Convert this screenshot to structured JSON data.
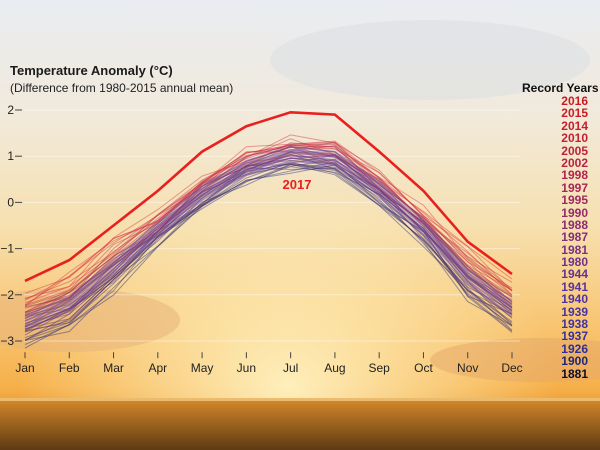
{
  "chart_data": {
    "type": "line",
    "title": "Temperature Anomaly (°C)",
    "subtitle": "(Difference from 1980-2015 annual mean)",
    "xlabel": "",
    "ylabel": "Temperature Anomaly (°C)",
    "categories": [
      "Jan",
      "Feb",
      "Mar",
      "Apr",
      "May",
      "Jun",
      "Jul",
      "Aug",
      "Sep",
      "Oct",
      "Nov",
      "Dec"
    ],
    "yticks": [
      2,
      1,
      0,
      -1,
      -2,
      -3
    ],
    "ytick_labels": [
      "2",
      "1",
      "0",
      "−1",
      "−2",
      "−3"
    ],
    "ylim": [
      -3.2,
      2.2
    ],
    "grid": true,
    "highlight": {
      "name": "2017",
      "color": "#e8201e",
      "values": [
        -1.7,
        -1.25,
        -0.5,
        0.25,
        1.1,
        1.65,
        1.95,
        1.9,
        1.1,
        0.25,
        -0.85,
        -1.55
      ]
    },
    "climatology": {
      "mean": [
        -2.6,
        -2.2,
        -1.4,
        -0.6,
        0.2,
        0.75,
        1.05,
        0.95,
        0.3,
        -0.55,
        -1.6,
        -2.3
      ],
      "color_old": "#1d2a7a",
      "color_new": "#e2303a",
      "line_count": 40
    },
    "legend_title": "Record Years",
    "legend_position": "right",
    "legend_years": [
      {
        "year": "2016",
        "color": "#cc1a1f"
      },
      {
        "year": "2015",
        "color": "#cc1a23"
      },
      {
        "year": "2014",
        "color": "#c81d2a"
      },
      {
        "year": "2010",
        "color": "#c41e33"
      },
      {
        "year": "2005",
        "color": "#be2039"
      },
      {
        "year": "2002",
        "color": "#b82242"
      },
      {
        "year": "1998",
        "color": "#b0244c"
      },
      {
        "year": "1997",
        "color": "#a82655"
      },
      {
        "year": "1995",
        "color": "#a0285f"
      },
      {
        "year": "1990",
        "color": "#962a69"
      },
      {
        "year": "1988",
        "color": "#8c2c72"
      },
      {
        "year": "1987",
        "color": "#822e7b"
      },
      {
        "year": "1981",
        "color": "#783084"
      },
      {
        "year": "1980",
        "color": "#6e318c"
      },
      {
        "year": "1944",
        "color": "#643293"
      },
      {
        "year": "1941",
        "color": "#5a339a"
      },
      {
        "year": "1940",
        "color": "#5033a0"
      },
      {
        "year": "1939",
        "color": "#4733a2"
      },
      {
        "year": "1938",
        "color": "#3e32a2"
      },
      {
        "year": "1937",
        "color": "#36309e"
      },
      {
        "year": "1926",
        "color": "#2d2d96"
      },
      {
        "year": "1900",
        "color": "#1f2673"
      },
      {
        "year": "1881",
        "color": "#0d0d26"
      }
    ]
  }
}
